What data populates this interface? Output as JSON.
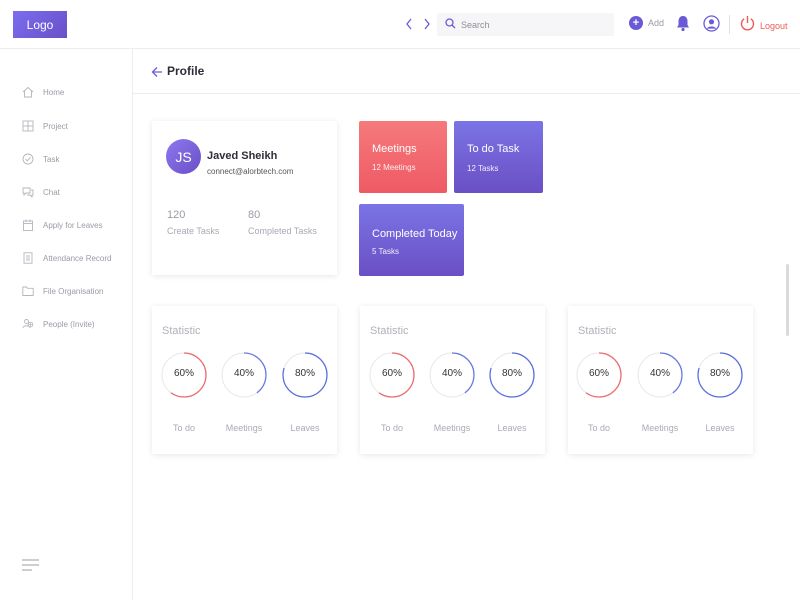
{
  "header": {
    "logo": "Logo",
    "search_placeholder": "Search",
    "add_label": "Add",
    "logout_label": "Logout"
  },
  "sidebar": {
    "items": [
      {
        "label": "Home",
        "icon": "home-icon"
      },
      {
        "label": "Project",
        "icon": "grid-icon"
      },
      {
        "label": "Task",
        "icon": "check-circle-icon"
      },
      {
        "label": "Chat",
        "icon": "chat-icon"
      },
      {
        "label": "Apply for Leaves",
        "icon": "calendar-icon"
      },
      {
        "label": "Attendance Record",
        "icon": "document-icon"
      },
      {
        "label": "File Organisation",
        "icon": "folder-icon"
      },
      {
        "label": "People (Invite)",
        "icon": "people-icon"
      }
    ]
  },
  "page": {
    "title": "Profile"
  },
  "profile": {
    "initials": "JS",
    "name": "Javed Sheikh",
    "email": "connect@alorbtech.com",
    "stats": [
      {
        "value": "120",
        "label": "Create Tasks"
      },
      {
        "value": "80",
        "label": "Completed Tasks"
      }
    ]
  },
  "tiles": [
    {
      "title": "Meetings",
      "subtitle": "12 Meetings"
    },
    {
      "title": "To do Task",
      "subtitle": "12 Tasks"
    },
    {
      "title": "Completed Today",
      "subtitle": "5 Tasks"
    }
  ],
  "statistics": [
    {
      "title": "Statistic",
      "rings": [
        {
          "percent_label": "60%",
          "label": "To do",
          "value": 0.6,
          "color": "#ee6b6e"
        },
        {
          "percent_label": "40%",
          "label": "Meetings",
          "value": 0.4,
          "color": "#6a7be0"
        },
        {
          "percent_label": "80%",
          "label": "Leaves",
          "value": 0.8,
          "color": "#5a72dd"
        }
      ]
    },
    {
      "title": "Statistic",
      "rings": [
        {
          "percent_label": "60%",
          "label": "To do",
          "value": 0.6,
          "color": "#ee6b6e"
        },
        {
          "percent_label": "40%",
          "label": "Meetings",
          "value": 0.4,
          "color": "#6a7be0"
        },
        {
          "percent_label": "80%",
          "label": "Leaves",
          "value": 0.8,
          "color": "#5a72dd"
        }
      ]
    },
    {
      "title": "Statistic",
      "rings": [
        {
          "percent_label": "60%",
          "label": "To do",
          "value": 0.6,
          "color": "#ee6b6e"
        },
        {
          "percent_label": "40%",
          "label": "Meetings",
          "value": 0.4,
          "color": "#6a7be0"
        },
        {
          "percent_label": "80%",
          "label": "Leaves",
          "value": 0.8,
          "color": "#5a72dd"
        }
      ]
    }
  ],
  "colors": {
    "brand": "#6b5ad6",
    "danger": "#ee5a5a"
  }
}
